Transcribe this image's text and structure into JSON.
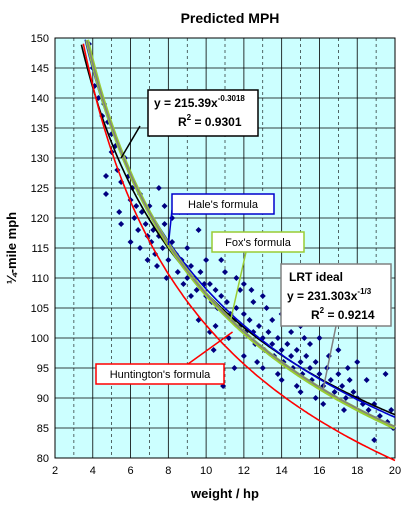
{
  "chart_data": {
    "type": "scatter",
    "title": "Predicted MPH",
    "xlabel": "weight / hp",
    "ylabel": "¼-mile mph",
    "xlim": [
      2,
      20
    ],
    "ylim": [
      80,
      150
    ],
    "x_ticks": [
      2,
      4,
      6,
      8,
      10,
      12,
      14,
      16,
      18,
      20
    ],
    "y_ticks": [
      80,
      85,
      90,
      95,
      100,
      105,
      110,
      115,
      120,
      125,
      130,
      135,
      140,
      145,
      150
    ],
    "grid": true,
    "plot_background": "#ccffff",
    "points": [
      [
        3.8,
        149
      ],
      [
        4.0,
        145
      ],
      [
        4.1,
        142
      ],
      [
        4.3,
        140
      ],
      [
        4.5,
        137
      ],
      [
        4.6,
        139
      ],
      [
        4.8,
        136
      ],
      [
        5.0,
        134
      ],
      [
        5.2,
        132
      ],
      [
        4.7,
        127
      ],
      [
        5.0,
        131
      ],
      [
        5.3,
        128
      ],
      [
        5.5,
        126
      ],
      [
        5.7,
        130
      ],
      [
        5.9,
        127
      ],
      [
        6.1,
        125
      ],
      [
        6.3,
        122
      ],
      [
        6.5,
        124
      ],
      [
        4.7,
        124
      ],
      [
        5.4,
        121
      ],
      [
        6.0,
        123
      ],
      [
        6.2,
        120
      ],
      [
        6.4,
        118
      ],
      [
        6.6,
        121
      ],
      [
        6.8,
        119
      ],
      [
        7.0,
        122
      ],
      [
        7.2,
        118
      ],
      [
        6.5,
        115
      ],
      [
        6.9,
        117
      ],
      [
        7.1,
        116
      ],
      [
        7.3,
        114
      ],
      [
        7.5,
        117
      ],
      [
        7.7,
        115
      ],
      [
        7.8,
        119
      ],
      [
        8.0,
        113
      ],
      [
        8.2,
        116
      ],
      [
        8.4,
        114
      ],
      [
        8.5,
        111
      ],
      [
        8.7,
        113
      ],
      [
        8.9,
        112
      ],
      [
        9.0,
        110
      ],
      [
        9.2,
        112
      ],
      [
        9.4,
        110
      ],
      [
        9.5,
        108
      ],
      [
        9.7,
        111
      ],
      [
        9.9,
        109
      ],
      [
        10.0,
        107
      ],
      [
        10.2,
        109
      ],
      [
        10.3,
        106
      ],
      [
        10.5,
        108
      ],
      [
        10.6,
        105
      ],
      [
        10.8,
        107
      ],
      [
        11.0,
        104
      ],
      [
        11.1,
        106
      ],
      [
        11.3,
        104
      ],
      [
        11.5,
        103
      ],
      [
        11.6,
        105
      ],
      [
        11.8,
        102
      ],
      [
        12.0,
        104
      ],
      [
        12.1,
        101
      ],
      [
        12.3,
        103
      ],
      [
        12.5,
        101
      ],
      [
        12.6,
        99
      ],
      [
        12.8,
        102
      ],
      [
        13.0,
        100
      ],
      [
        13.1,
        98
      ],
      [
        13.3,
        101
      ],
      [
        13.5,
        99
      ],
      [
        13.6,
        97
      ],
      [
        13.8,
        100
      ],
      [
        14.0,
        98
      ],
      [
        14.1,
        96
      ],
      [
        14.3,
        99
      ],
      [
        14.5,
        97
      ],
      [
        14.6,
        95
      ],
      [
        14.8,
        98
      ],
      [
        15.0,
        96
      ],
      [
        15.1,
        94
      ],
      [
        15.3,
        97
      ],
      [
        15.5,
        95
      ],
      [
        15.6,
        93
      ],
      [
        15.8,
        96
      ],
      [
        16.0,
        94
      ],
      [
        16.2,
        92
      ],
      [
        16.4,
        95
      ],
      [
        16.6,
        93
      ],
      [
        16.8,
        91
      ],
      [
        17.0,
        94
      ],
      [
        17.2,
        92
      ],
      [
        17.4,
        90
      ],
      [
        17.6,
        93
      ],
      [
        17.8,
        91
      ],
      [
        18.0,
        90
      ],
      [
        18.3,
        89
      ],
      [
        18.6,
        88
      ],
      [
        18.9,
        89
      ],
      [
        19.2,
        87
      ],
      [
        19.6,
        86
      ],
      [
        19.9,
        85
      ],
      [
        18.9,
        83
      ],
      [
        19.8,
        88
      ],
      [
        10.9,
        92
      ],
      [
        11.5,
        95
      ],
      [
        10.4,
        98
      ],
      [
        9.6,
        103
      ],
      [
        10.2,
        101
      ],
      [
        12.0,
        97
      ],
      [
        13.0,
        95
      ],
      [
        14.0,
        93
      ],
      [
        15.0,
        91
      ],
      [
        8.2,
        120
      ],
      [
        7.5,
        125
      ],
      [
        7.8,
        122
      ],
      [
        6.0,
        116
      ],
      [
        5.5,
        119
      ],
      [
        9.0,
        115
      ],
      [
        10.0,
        113
      ],
      [
        11.0,
        111
      ],
      [
        12.0,
        109
      ],
      [
        13.0,
        107
      ],
      [
        14.0,
        104
      ],
      [
        15.0,
        102
      ],
      [
        16.0,
        100
      ],
      [
        17.0,
        98
      ],
      [
        18.0,
        96
      ],
      [
        19.5,
        94
      ],
      [
        12.5,
        106
      ],
      [
        11.8,
        108
      ],
      [
        9.6,
        118
      ],
      [
        8.6,
        121
      ],
      [
        13.5,
        103
      ],
      [
        16.5,
        97
      ],
      [
        17.5,
        95
      ],
      [
        18.5,
        93
      ],
      [
        14.5,
        101
      ],
      [
        15.5,
        99
      ],
      [
        10.5,
        102
      ],
      [
        11.2,
        100
      ],
      [
        12.7,
        96
      ],
      [
        13.8,
        94
      ],
      [
        16.2,
        89
      ],
      [
        17.3,
        88
      ],
      [
        15.8,
        90
      ],
      [
        14.8,
        92
      ],
      [
        9.2,
        107
      ],
      [
        8.8,
        109
      ],
      [
        7.4,
        112
      ],
      [
        6.9,
        113
      ],
      [
        7.9,
        110
      ],
      [
        10.8,
        113
      ],
      [
        11.6,
        110
      ],
      [
        12.4,
        108
      ],
      [
        13.2,
        105
      ],
      [
        14.2,
        103
      ],
      [
        15.2,
        100
      ]
    ],
    "series": [
      {
        "formula": "y = 215.39x^-0.3018",
        "color": "#000000",
        "a": 215.39,
        "b": -0.3018
      },
      {
        "name": "Hale's formula",
        "color": "#0000cc",
        "a": 225.0,
        "b": -0.318
      },
      {
        "name": "Fox's formula",
        "color": "#99cc33",
        "a": 232.0,
        "b": -0.335,
        "width": 4
      },
      {
        "formula": "y = 231.303x^-1/3",
        "color": "#808080",
        "a": 231.303,
        "b": -0.3333
      },
      {
        "name": "Huntington's formula",
        "color": "#ff0000",
        "a": 234.0,
        "b": -0.36
      }
    ],
    "annotations": [
      {
        "id": "power-fit",
        "line1": "y = 215.39x",
        "exp": "-0.3018",
        "line2": "R",
        "line2_sup": "2",
        "line2_rest": " = 0.9301",
        "border": "#000000",
        "target_x": 5.5,
        "target_y": 130
      },
      {
        "id": "hale",
        "text": "Hale's formula",
        "border": "#0000cc",
        "target_x": 8.0,
        "target_y": 115.5
      },
      {
        "id": "fox",
        "text": "Fox's formula",
        "border": "#99cc33",
        "target_x": 11.3,
        "target_y": 103
      },
      {
        "id": "lrt",
        "title": "LRT ideal",
        "line1": "y = 231.303x",
        "exp": "-1/3",
        "line2": "R",
        "line2_sup": "2",
        "line2_rest": " = 0.9214",
        "border": "#808080",
        "target_x": 16.2,
        "target_y": 91.5
      },
      {
        "id": "huntington",
        "text": "Huntington's formula",
        "border": "#ff0000",
        "target_x": 11.4,
        "target_y": 101
      }
    ]
  }
}
